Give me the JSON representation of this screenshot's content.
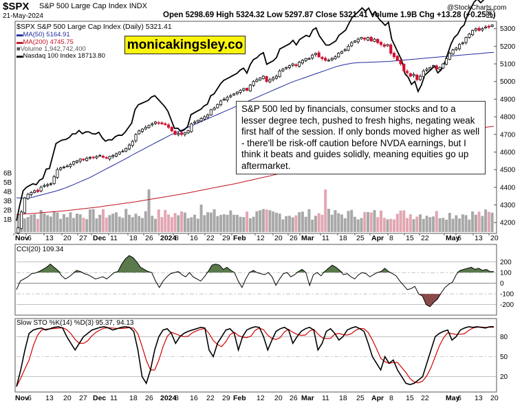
{
  "header": {
    "symbol": "$SPX",
    "name": "S&P 500 Large Cap Index",
    "exchange": "INDX",
    "date": "21-May-2024",
    "copyright": "@StockCharts.com",
    "ohlc_text": "Open 5298.69  High 5324.32  Low 5297.87  Close 5321.41  Volume 1.9B  Chg +13.28 (+0.25%)"
  },
  "legend": {
    "price": "$SPX S&P 500 Large Cap Index (Daily) 5321.41",
    "ma50": "MA(50) 5164.91",
    "ma200": "MA(200) 4745.75",
    "volume": "Volume 1,942,742,400",
    "nasdaq": "Nasdaq 100 Index 18713.80"
  },
  "watermark": "monicakingsley.co",
  "note": "S&P 500 led by financials, consumer stocks and to a lesser degree tech, pushed to fresh highs, negating weak first half of the session. If only bonds moved higher as well - there'll be risk-off caution before NVDA earnings, but I think it beats and guides solidly, meaning equities go up aftermarket.",
  "cci_label": "CCI(20) 109.34",
  "sto_label": "Slow STO %K(14) %D(3) 95.37, 94.13",
  "colors": {
    "up": "#000000",
    "down": "#d01030",
    "ma50": "#1f2a9c",
    "ma200": "#c01020",
    "volume_up": "#a8a8a8",
    "volume_down": "#e3a6b2",
    "cci_pos": "#5a7a4c",
    "cci_neg": "#8a4a4a",
    "sto_d": "#d00000"
  },
  "chart_data": [
    {
      "type": "candlestick",
      "title": "S&P 500 Large Cap Index (Daily)",
      "x_tick_labels": [
        "Nov",
        "6",
        "13",
        "20",
        "27",
        "Dec",
        "11",
        "18",
        "26",
        "2024",
        "8",
        "16",
        "22",
        "29",
        "Feb",
        "12",
        "20",
        "26",
        "Mar",
        "11",
        "18",
        "25",
        "Apr",
        "8",
        "15",
        "22",
        "May",
        "6",
        "13",
        "20"
      ],
      "price_axis": {
        "ylim": [
          4150,
          5330
        ],
        "ticks": [
          4200,
          4300,
          4400,
          4500,
          4600,
          4700,
          4800,
          4900,
          5000,
          5100,
          5200,
          5300
        ]
      },
      "volume_axis": {
        "ticks": [
          "1B",
          "2B",
          "3B",
          "4B",
          "5B",
          "6B"
        ]
      },
      "close": [
        4170,
        4260,
        4340,
        4360,
        4370,
        4380,
        4375,
        4400,
        4410,
        4415,
        4420,
        4460,
        4500,
        4510,
        4515,
        4520,
        4530,
        4545,
        4550,
        4560,
        4555,
        4565,
        4570,
        4570,
        4575,
        4580,
        4570,
        4565,
        4575,
        4580,
        4590,
        4600,
        4605,
        4620,
        4640,
        4660,
        4700,
        4720,
        4730,
        4740,
        4750,
        4760,
        4770,
        4765,
        4760,
        4755,
        4740,
        4720,
        4700,
        4705,
        4700,
        4710,
        4720,
        4760,
        4770,
        4780,
        4790,
        4800,
        4810,
        4840,
        4850,
        4870,
        4890,
        4900,
        4910,
        4920,
        4930,
        4940,
        4950,
        4960,
        4950,
        4980,
        5000,
        5010,
        5020,
        5030,
        5000,
        5010,
        5020,
        5030,
        5060,
        5070,
        5080,
        5090,
        5100,
        5090,
        5110,
        5120,
        5130,
        5130,
        5150,
        5160,
        5140,
        5130,
        5120,
        5120,
        5130,
        5140,
        5160,
        5170,
        5180,
        5200,
        5220,
        5230,
        5240,
        5250,
        5240,
        5250,
        5230,
        5240,
        5220,
        5210,
        5200,
        5210,
        5160,
        5140,
        5120,
        5100,
        5060,
        5050,
        5030,
        5040,
        5010,
        5030,
        5060,
        5070,
        5080,
        5090,
        5070,
        5080,
        5100,
        5130,
        5160,
        5180,
        5190,
        5210,
        5220,
        5250,
        5270,
        5290,
        5300,
        5290,
        5300,
        5310,
        5308,
        5321
      ],
      "ma50": [
        4340,
        4340,
        4338,
        4340,
        4344,
        4350,
        4356,
        4362,
        4368,
        4374,
        4380,
        4388,
        4396,
        4405,
        4414,
        4424,
        4434,
        4444,
        4454,
        4466,
        4478,
        4490,
        4502,
        4514,
        4526,
        4538,
        4550,
        4562,
        4575,
        4588,
        4600,
        4612,
        4624,
        4636,
        4648,
        4660,
        4672,
        4684,
        4696,
        4706,
        4716,
        4726,
        4736,
        4746,
        4756,
        4766,
        4776,
        4786,
        4796,
        4806,
        4816,
        4826,
        4836,
        4846,
        4856,
        4866,
        4876,
        4886,
        4896,
        4906,
        4916,
        4926,
        4936,
        4946,
        4956,
        4966,
        4976,
        4986,
        4996,
        5004,
        5012,
        5020,
        5028,
        5036,
        5044,
        5052,
        5060,
        5068,
        5076,
        5084,
        5090,
        5096,
        5100,
        5104,
        5106,
        5108,
        5108,
        5109,
        5110,
        5111,
        5112,
        5113,
        5114,
        5116,
        5118,
        5120,
        5122,
        5124,
        5126,
        5128,
        5130,
        5132,
        5134,
        5136,
        5138,
        5140,
        5142,
        5144,
        5146,
        5148,
        5150,
        5152,
        5154,
        5156,
        5158,
        5160,
        5162,
        5164,
        5165
      ],
      "ma200": [
        4245,
        4248,
        4250,
        4253,
        4256,
        4259,
        4262,
        4265,
        4268,
        4272,
        4276,
        4280,
        4284,
        4288,
        4293,
        4298,
        4303,
        4308,
        4313,
        4318,
        4324,
        4330,
        4336,
        4342,
        4348,
        4354,
        4360,
        4366,
        4373,
        4380,
        4387,
        4394,
        4401,
        4408,
        4415,
        4422,
        4430,
        4438,
        4446,
        4454,
        4462,
        4470,
        4478,
        4486,
        4494,
        4502,
        4510,
        4518,
        4526,
        4534,
        4542,
        4550,
        4558,
        4566,
        4574,
        4582,
        4590,
        4598,
        4606,
        4614,
        4622,
        4630,
        4638,
        4646,
        4654,
        4662,
        4670,
        4678,
        4686,
        4694,
        4702,
        4710,
        4718,
        4726,
        4734,
        4742,
        4746
      ]
    },
    {
      "type": "line",
      "title": "CCI(20) 109.34",
      "ylim": [
        -280,
        300
      ],
      "y_ticks": [
        200,
        100,
        0,
        -100,
        -200
      ],
      "last_value": 109.34
    },
    {
      "type": "line",
      "title": "Slow STO %K(14) %D(3) 95.37, 94.13",
      "ylim": [
        0,
        100
      ],
      "y_ticks": [
        80,
        50,
        20
      ],
      "k_last": 95.37,
      "d_last": 94.13
    }
  ]
}
